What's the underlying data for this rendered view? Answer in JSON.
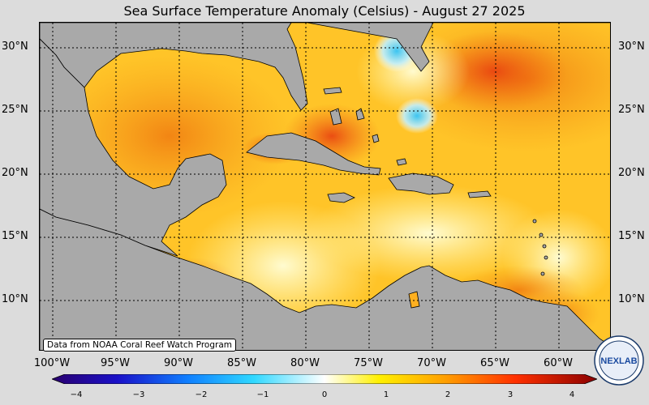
{
  "title": "Sea Surface Temperature Anomaly (Celsius) - August 27 2025",
  "lat_labels": [
    "30°N",
    "25°N",
    "20°N",
    "15°N",
    "10°N"
  ],
  "lon_labels": [
    "100°W",
    "95°W",
    "90°W",
    "85°W",
    "80°W",
    "75°W",
    "70°W",
    "65°W",
    "60°W"
  ],
  "credit": "Data from NOAA Coral Reef Watch Program",
  "colorbar_ticks": [
    "−4",
    "−3",
    "−2",
    "−1",
    "0",
    "1",
    "2",
    "3",
    "4"
  ],
  "logo_text": "NEXLAB",
  "colors": {
    "land": "#a9a9a9",
    "ocean_warm": "#ffb020",
    "ocean_hot": "#f07010",
    "ocean_cool": "#fff59a",
    "grid": "#000000"
  }
}
